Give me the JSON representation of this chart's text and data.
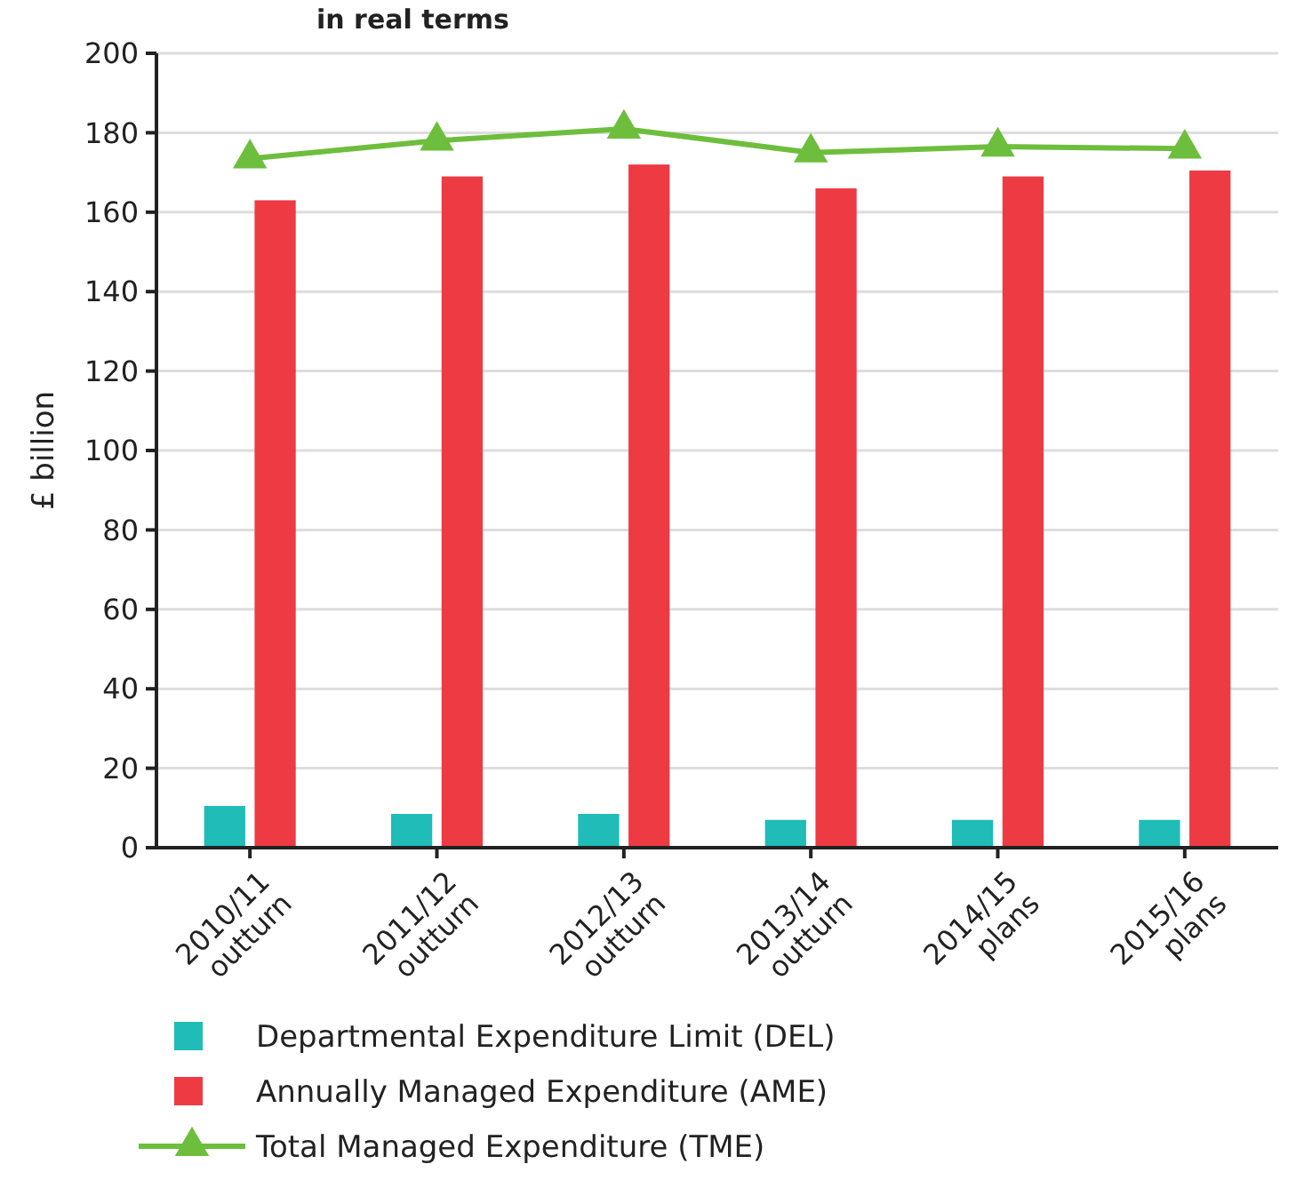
{
  "chart_data": {
    "type": "bar",
    "subtitle": "in real terms",
    "ylabel": "£ billion",
    "categories": [
      "2010/11 outturn",
      "2011/12 outturn",
      "2012/13 outturn",
      "2013/14 outturn",
      "2014/15 plans",
      "2015/16 plans"
    ],
    "series": [
      {
        "name": "Departmental Expenditure Limit (DEL)",
        "color": "#1fbcb8",
        "values": [
          10.5,
          8.5,
          8.5,
          7,
          7,
          7
        ]
      },
      {
        "name": "Annually Managed Expenditure (AME)",
        "color": "#ee3a43",
        "values": [
          163,
          169,
          172,
          166,
          169,
          170.5
        ]
      },
      {
        "name": "Total Managed Expenditure (TME)",
        "type": "line",
        "color": "#6dbe3c",
        "marker": "triangle",
        "values": [
          173.5,
          178,
          181,
          175,
          176.5,
          176
        ]
      }
    ],
    "ylim": [
      0,
      200
    ],
    "yticks": [
      0,
      20,
      40,
      60,
      80,
      100,
      120,
      140,
      160,
      180,
      200
    ],
    "grid": "y",
    "legend": "bottom"
  }
}
